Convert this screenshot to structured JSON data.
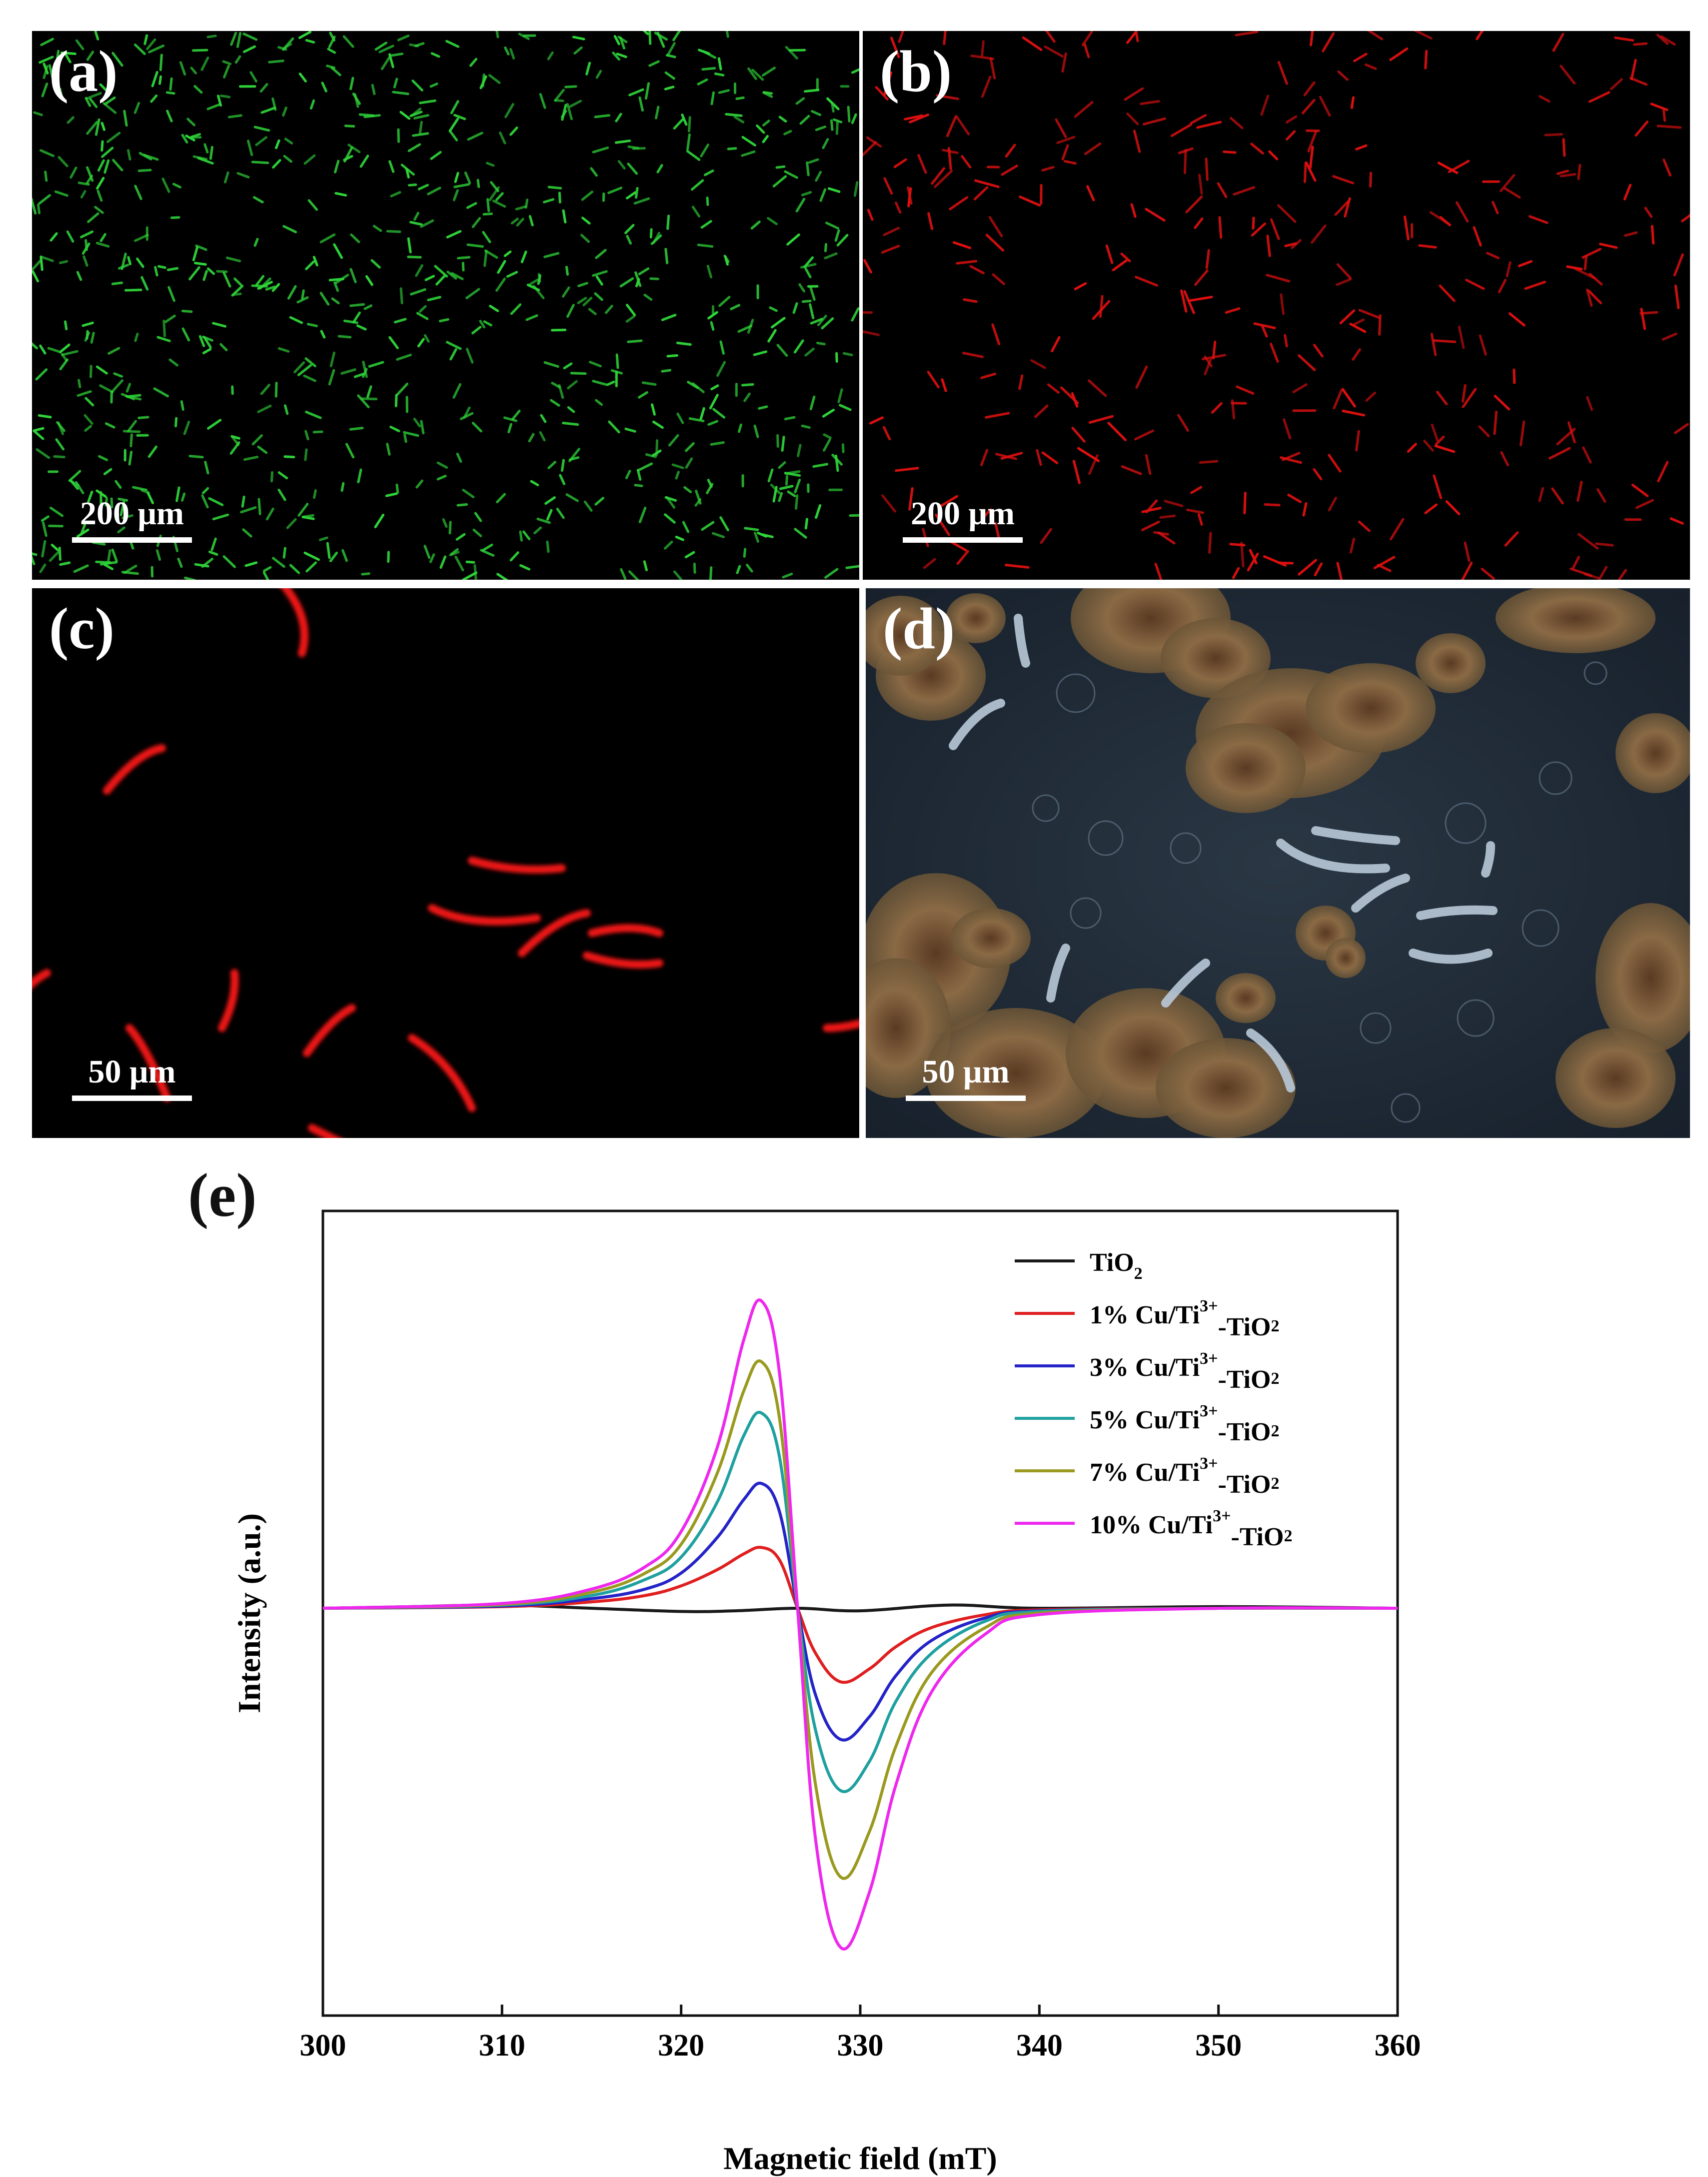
{
  "panels": {
    "a": {
      "label": "(a)",
      "scale_bar": "200 μm",
      "fluorescence_color": "#2fd63a"
    },
    "b": {
      "label": "(b)",
      "scale_bar": "200 μm",
      "fluorescence_color": "#e01010"
    },
    "c": {
      "label": "(c)",
      "scale_bar": "50 μm",
      "fluorescence_color": "#ee1414"
    },
    "d": {
      "label": "(d)",
      "scale_bar": "50 μm"
    },
    "e": {
      "label": "(e)"
    }
  },
  "chart_data": {
    "type": "line",
    "xlabel": "Magnetic field (mT)",
    "ylabel": "Intensity (a.u.)",
    "xlim": [
      300,
      360
    ],
    "xticks": [
      300,
      310,
      320,
      330,
      340,
      350,
      360
    ],
    "ylim": [
      -1.25,
      1.0
    ],
    "y_tick_labels_shown": false,
    "legend_position": "top-right",
    "series": [
      {
        "name": "TiO2",
        "color": "#1a1a1a",
        "x": [
          300,
          305,
          310,
          315,
          320,
          323,
          326.5,
          330,
          335,
          340,
          350,
          360
        ],
        "y": [
          0.0,
          0.005,
          0.01,
          0.0,
          -0.01,
          -0.008,
          0.0,
          -0.008,
          0.01,
          0.0,
          0.005,
          0.0
        ]
      },
      {
        "name": "1% Cu/Ti3+-TiO2",
        "color": "#e02020",
        "x": [
          300,
          310,
          315,
          318,
          320,
          322,
          323.5,
          324.5,
          325.5,
          326.5,
          327.5,
          328.9,
          330.5,
          332,
          334,
          337,
          340,
          350,
          360
        ],
        "y": [
          0.0,
          0.005,
          0.02,
          0.04,
          0.07,
          0.12,
          0.17,
          0.19,
          0.15,
          0.0,
          -0.14,
          -0.23,
          -0.19,
          -0.12,
          -0.06,
          -0.02,
          -0.005,
          0.0,
          0.0
        ]
      },
      {
        "name": "3% Cu/Ti3+-TiO2",
        "color": "#2424c8",
        "x": [
          300,
          310,
          315,
          318,
          320,
          322,
          323.5,
          324.5,
          325.5,
          326.5,
          327.5,
          328.9,
          330.5,
          332,
          334,
          337,
          340,
          350,
          360
        ],
        "y": [
          0.0,
          0.007,
          0.03,
          0.06,
          0.11,
          0.22,
          0.34,
          0.39,
          0.3,
          0.0,
          -0.27,
          -0.41,
          -0.34,
          -0.21,
          -0.1,
          -0.03,
          -0.008,
          0.0,
          0.0
        ]
      },
      {
        "name": "5% Cu/Ti3+-TiO2",
        "color": "#20a0a0",
        "x": [
          300,
          310,
          315,
          318,
          320,
          322,
          323.5,
          324.5,
          325.5,
          326.5,
          327.5,
          328.9,
          330.5,
          332,
          334,
          337,
          340,
          350,
          360
        ],
        "y": [
          0.0,
          0.01,
          0.04,
          0.09,
          0.16,
          0.33,
          0.54,
          0.61,
          0.47,
          0.0,
          -0.38,
          -0.57,
          -0.48,
          -0.29,
          -0.14,
          -0.04,
          -0.01,
          0.0,
          0.0
        ]
      },
      {
        "name": "7% Cu/Ti3+-TiO2",
        "color": "#9a9a20",
        "x": [
          300,
          310,
          315,
          318,
          320,
          322,
          323.5,
          324.5,
          325.5,
          326.5,
          327.5,
          328.9,
          330.5,
          332,
          334,
          337,
          340,
          350,
          360
        ],
        "y": [
          0.0,
          0.012,
          0.05,
          0.11,
          0.2,
          0.42,
          0.68,
          0.77,
          0.59,
          0.0,
          -0.55,
          -0.84,
          -0.7,
          -0.43,
          -0.2,
          -0.06,
          -0.015,
          0.0,
          0.0
        ]
      },
      {
        "name": "10% Cu/Ti3+-TiO2",
        "color": "#ee28ee",
        "x": [
          300,
          310,
          315,
          318,
          320,
          322,
          323.5,
          324.5,
          325.5,
          326.5,
          327.5,
          328.9,
          330.5,
          332,
          334,
          337,
          340,
          350,
          360
        ],
        "y": [
          0.0,
          0.015,
          0.06,
          0.13,
          0.24,
          0.5,
          0.84,
          0.96,
          0.73,
          0.0,
          -0.72,
          -1.06,
          -0.89,
          -0.55,
          -0.26,
          -0.08,
          -0.02,
          0.0,
          0.0
        ]
      }
    ],
    "legend": [
      {
        "base": "TiO",
        "sup": "",
        "sub": "2"
      },
      {
        "base": "1% Cu/Ti",
        "sup": "3+",
        "tail": "-TiO",
        "sub": "2"
      },
      {
        "base": "3% Cu/Ti",
        "sup": "3+",
        "tail": "-TiO",
        "sub": "2"
      },
      {
        "base": "5% Cu/Ti",
        "sup": "3+",
        "tail": "-TiO",
        "sub": "2"
      },
      {
        "base": "7% Cu/Ti",
        "sup": "3+",
        "tail": "-TiO",
        "sub": "2"
      },
      {
        "base": "10% Cu/Ti",
        "sup": "3+",
        "tail": "-TiO",
        "sub": "2"
      }
    ]
  }
}
